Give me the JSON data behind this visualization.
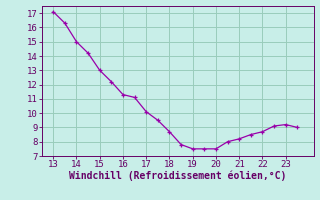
{
  "x": [
    13,
    13.5,
    14,
    14.5,
    15,
    15.5,
    16,
    16.5,
    17,
    17.5,
    18,
    18.5,
    19,
    19.5,
    20,
    20.5,
    21,
    21.5,
    22,
    22.5,
    23,
    23.5
  ],
  "y": [
    17.1,
    16.3,
    15.0,
    14.2,
    13.0,
    12.2,
    11.3,
    11.1,
    10.1,
    9.5,
    8.7,
    7.8,
    7.5,
    7.5,
    7.5,
    8.0,
    8.2,
    8.5,
    8.7,
    9.1,
    9.2,
    9.0
  ],
  "line_color": "#9900aa",
  "marker_color": "#9900aa",
  "bg_color": "#c8eee8",
  "grid_color": "#99ccbb",
  "xlabel": "Windchill (Refroidissement éolien,°C)",
  "xlim": [
    12.5,
    24.2
  ],
  "ylim": [
    7,
    17.5
  ],
  "xticks": [
    13,
    14,
    15,
    16,
    17,
    18,
    19,
    20,
    21,
    22,
    23
  ],
  "yticks": [
    7,
    8,
    9,
    10,
    11,
    12,
    13,
    14,
    15,
    16,
    17
  ],
  "xlabel_color": "#660066",
  "tick_color": "#660066",
  "axis_color": "#660066",
  "label_fontsize": 7.0,
  "tick_fontsize": 6.5
}
